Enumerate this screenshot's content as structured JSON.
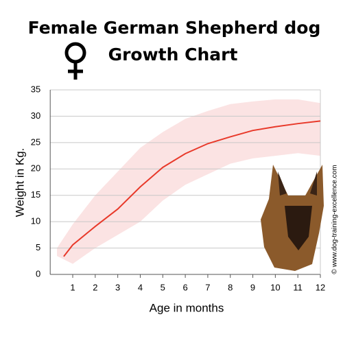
{
  "chart_data": {
    "type": "line",
    "title": "Female German Shepherd dog",
    "subtitle": "Growth Chart",
    "x_label": "Age in months",
    "y_label": "Weight in Kg.",
    "annotation": "© www.dog-training-excellence.com",
    "xlim": [
      0,
      12
    ],
    "ylim": [
      0,
      35
    ],
    "xticks": [
      1,
      2,
      3,
      4,
      5,
      6,
      7,
      8,
      9,
      10,
      11,
      12
    ],
    "yticks": [
      0,
      5,
      10,
      15,
      20,
      25,
      30,
      35
    ],
    "grid": true,
    "band": {
      "color": "#fbe3e3",
      "x": [
        0.3,
        1,
        2,
        3,
        4,
        5,
        6,
        7,
        8,
        9,
        10,
        11,
        12
      ],
      "upper": [
        5,
        9.5,
        15,
        19.5,
        24,
        27,
        29.5,
        31,
        32.3,
        32.8,
        33.2,
        33.2,
        32.5
      ],
      "lower": [
        3.5,
        2,
        5,
        7.5,
        10,
        14,
        17,
        19,
        21,
        22,
        22.5,
        23,
        22.5
      ]
    },
    "series": [
      {
        "color": "#e8392a",
        "x": [
          0.6,
          1,
          2,
          3,
          4,
          5,
          6,
          7,
          8,
          9,
          10,
          11,
          12
        ],
        "values": [
          3.4,
          5.6,
          9.1,
          12.4,
          16.6,
          20.3,
          22.9,
          24.8,
          26.1,
          27.3,
          28,
          28.6,
          29.1
        ]
      }
    ]
  }
}
